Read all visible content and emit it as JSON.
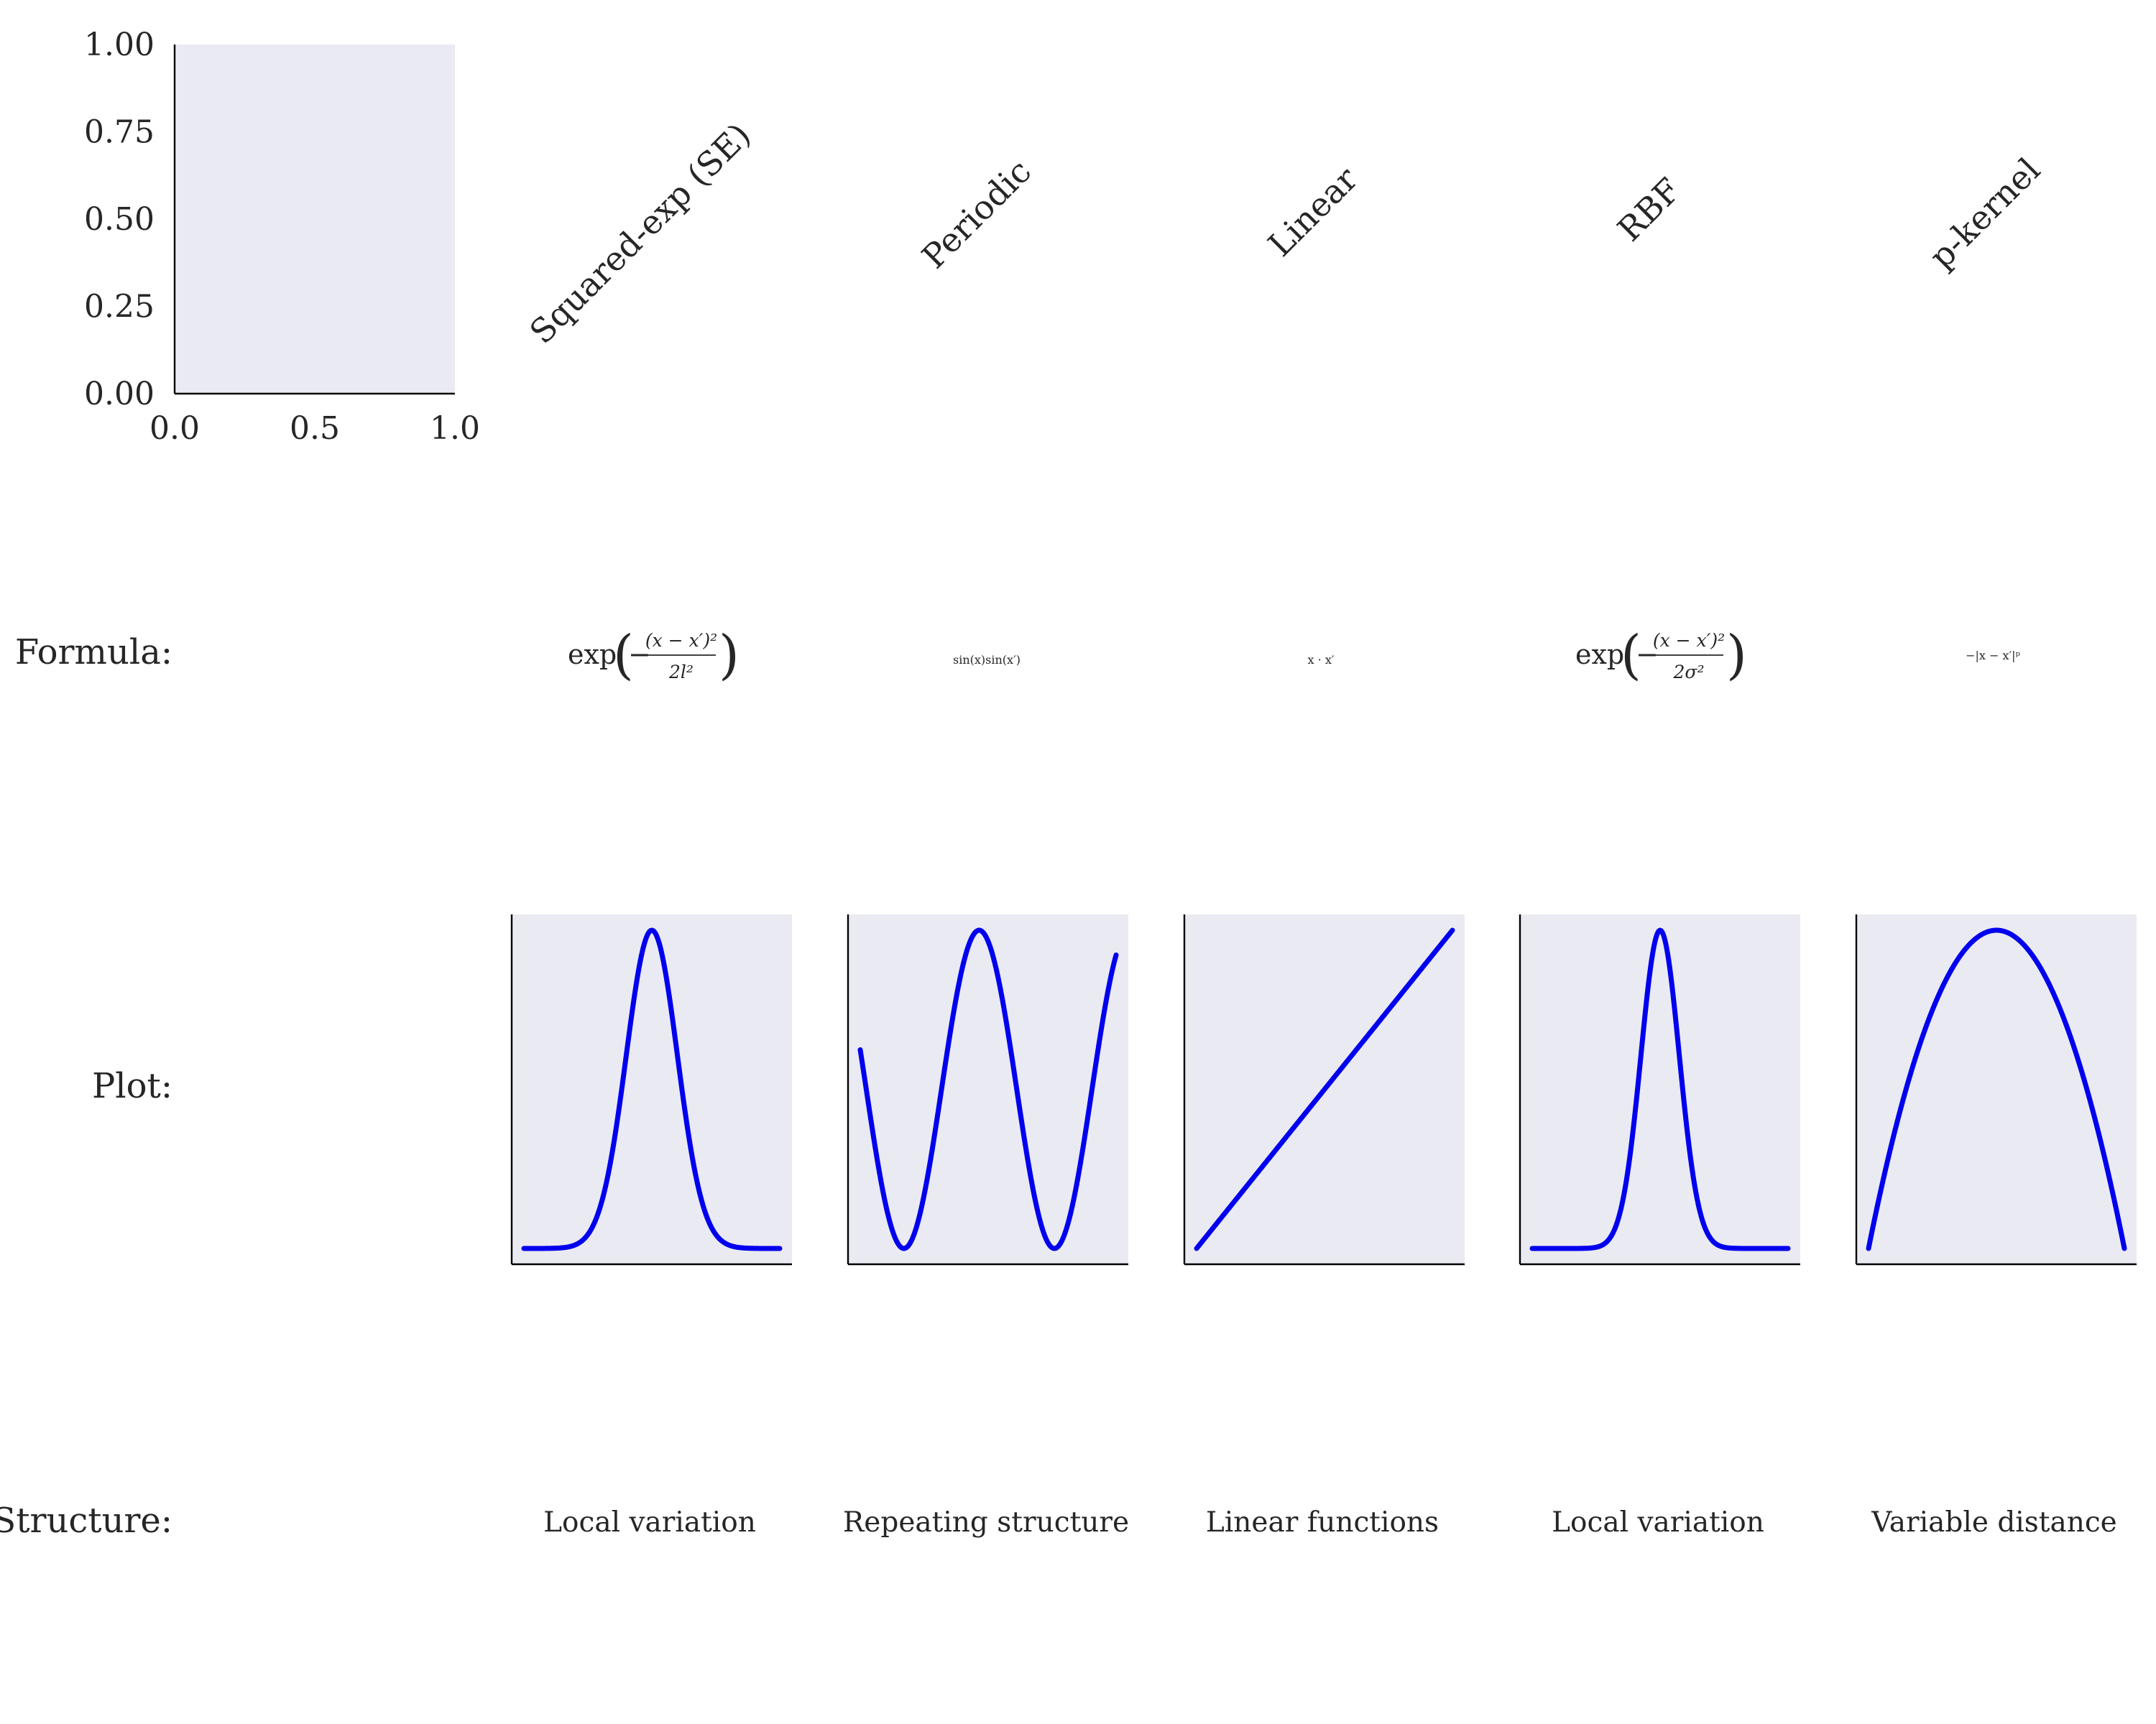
{
  "chart_data": [
    {
      "type": "line",
      "title": "",
      "xlabel": "",
      "ylabel": "",
      "xlim": [
        0,
        1
      ],
      "ylim": [
        0,
        1
      ],
      "x_ticks": [
        "0.0",
        "0.5",
        "1.0"
      ],
      "y_ticks": [
        "0.00",
        "0.25",
        "0.50",
        "0.75",
        "1.00"
      ],
      "series": []
    }
  ],
  "row_labels": {
    "formula": "Formula:",
    "plot": "Plot:",
    "structure": "Structure:"
  },
  "kernels": [
    {
      "title": "Squared-exp (SE)",
      "formula": {
        "prefix": "exp",
        "numerator": "(x − x′)²",
        "denominator": "2l²"
      },
      "structure": "Local variation",
      "plot": {
        "kind": "gaussian",
        "sigma": 0.1
      }
    },
    {
      "title": "Periodic",
      "formula": {
        "text": "sin(x)sin(x′)"
      },
      "structure": "Repeating structure",
      "plot": {
        "kind": "cosine",
        "cycles": 1.7,
        "phase": 0.79
      }
    },
    {
      "title": "Linear",
      "formula": {
        "text": "x · x′"
      },
      "structure": "Linear functions",
      "plot": {
        "kind": "linear"
      }
    },
    {
      "title": "RBF",
      "formula": {
        "prefix": "exp",
        "numerator": "(x − x′)²",
        "denominator": "2σ²"
      },
      "structure": "Local variation",
      "plot": {
        "kind": "gaussian",
        "sigma": 0.075
      }
    },
    {
      "title": "p-kernel",
      "formula": {
        "text": "−|x − x′|ᵖ"
      },
      "structure": "Variable distance",
      "plot": {
        "kind": "parabola"
      }
    }
  ],
  "colors": {
    "curve": "#0000ee",
    "axes_background": "#eaeaf2",
    "text": "#262626"
  }
}
